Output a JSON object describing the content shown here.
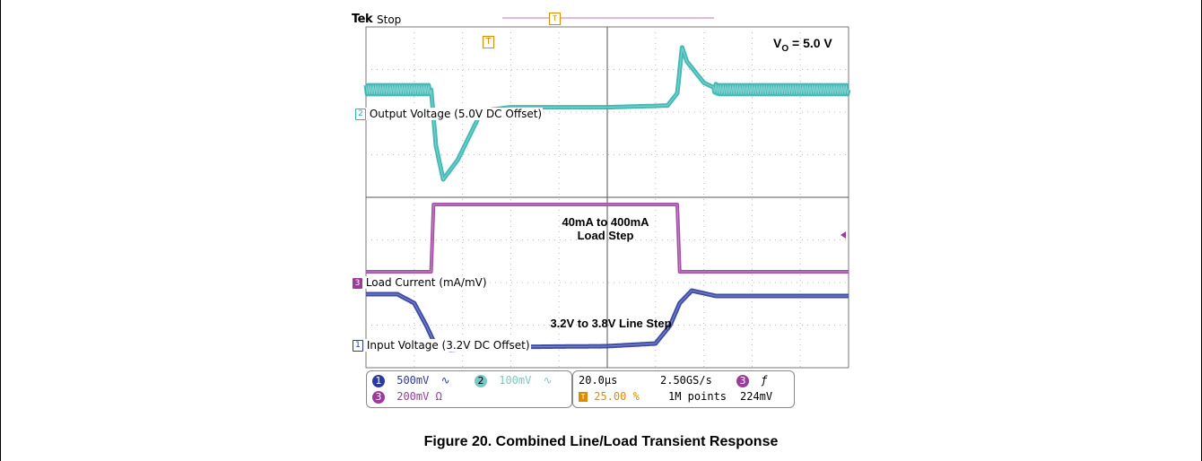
{
  "header": {
    "brand": "Tek",
    "status": "Stop"
  },
  "annotations": {
    "vout_prefix": "V",
    "vout_sub": "O",
    "vout_value": "= 5.0 V",
    "load_step_line1": "40mA to 400mA",
    "load_step_line2": "Load Step",
    "line_step": "3.2V to 3.8V Line Step"
  },
  "channels": [
    {
      "number": "1",
      "label": "Input Voltage (3.2V DC Offset)",
      "scale": "500mV",
      "coupling": "∿",
      "color": "#2a3aa0"
    },
    {
      "number": "2",
      "label": "Output Voltage (5.0V DC Offset)",
      "scale": "100mV",
      "coupling": "∿",
      "color": "#2fb3ae"
    },
    {
      "number": "3",
      "label": "Load Current (mA/mV)",
      "scale": "200mV Ω",
      "coupling": "",
      "color": "#9b3b9b"
    }
  ],
  "status": {
    "timebase": "20.0µs",
    "sample_rate": "2.50GS/s",
    "trigger_position": "25.00 %",
    "record_length": "1M points",
    "trigger_source": "3",
    "trigger_slope": "ƒ",
    "trigger_level": "224mV",
    "trigger_marker": "T"
  },
  "caption": "Figure 20. Combined Line/Load Transient Response",
  "chart_data": {
    "type": "line",
    "title": "",
    "xlabel": "",
    "ylabel": "",
    "grid": true,
    "x_unit": "µs",
    "xlim": [
      -40,
      160
    ],
    "x_div": 20,
    "series": [
      {
        "name": "Output Voltage (5.0V DC Offset)",
        "channel": 2,
        "unit": "mV",
        "points": [
          [
            -40,
            0
          ],
          [
            -13,
            0
          ],
          [
            -11,
            -160
          ],
          [
            -8,
            -255
          ],
          [
            -2,
            -200
          ],
          [
            8,
            -60
          ],
          [
            20,
            -50
          ],
          [
            60,
            -50
          ],
          [
            85,
            -45
          ],
          [
            89,
            -10
          ],
          [
            91,
            120
          ],
          [
            93,
            80
          ],
          [
            100,
            20
          ],
          [
            106,
            0
          ],
          [
            160,
            0
          ]
        ]
      },
      {
        "name": "Load Current (mA/mV)",
        "channel": 3,
        "unit": "mA",
        "points": [
          [
            -40,
            40
          ],
          [
            -13,
            40
          ],
          [
            -12,
            400
          ],
          [
            89,
            400
          ],
          [
            90,
            40
          ],
          [
            160,
            40
          ]
        ]
      },
      {
        "name": "Input Voltage (3.2V DC Offset)",
        "channel": 1,
        "unit": "V",
        "points": [
          [
            -40,
            3.8
          ],
          [
            -27,
            3.8
          ],
          [
            -20,
            3.7
          ],
          [
            -15,
            3.45
          ],
          [
            -11,
            3.22
          ],
          [
            -5,
            3.18
          ],
          [
            10,
            3.21
          ],
          [
            60,
            3.22
          ],
          [
            80,
            3.25
          ],
          [
            86,
            3.45
          ],
          [
            90,
            3.7
          ],
          [
            95,
            3.84
          ],
          [
            105,
            3.78
          ],
          [
            160,
            3.78
          ]
        ]
      }
    ]
  }
}
